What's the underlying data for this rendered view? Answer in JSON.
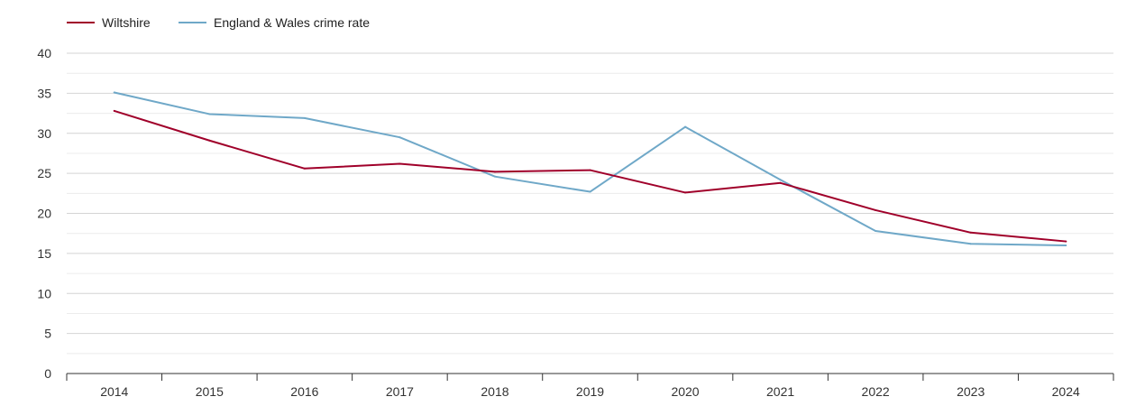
{
  "legend": {
    "items": [
      {
        "label": "Wiltshire",
        "color": "#a0002a"
      },
      {
        "label": "England & Wales crime rate",
        "color": "#6fa8c8"
      }
    ]
  },
  "chart_data": {
    "type": "line",
    "title": "",
    "xlabel": "",
    "ylabel": "",
    "x": [
      2014,
      2015,
      2016,
      2017,
      2018,
      2019,
      2020,
      2021,
      2022,
      2023,
      2024
    ],
    "ylim": [
      0,
      40
    ],
    "yticks": [
      0,
      5,
      10,
      15,
      20,
      25,
      30,
      35,
      40
    ],
    "grid": true,
    "legend_position": "top-left",
    "series": [
      {
        "name": "Wiltshire",
        "color": "#a0002a",
        "values": [
          32.8,
          29.1,
          25.6,
          26.2,
          25.2,
          25.4,
          22.6,
          23.8,
          20.4,
          17.6,
          16.5
        ]
      },
      {
        "name": "England & Wales crime rate",
        "color": "#6fa8c8",
        "values": [
          35.1,
          32.4,
          31.9,
          29.5,
          24.6,
          22.7,
          30.8,
          24.2,
          17.8,
          16.2,
          16.0
        ]
      }
    ]
  }
}
